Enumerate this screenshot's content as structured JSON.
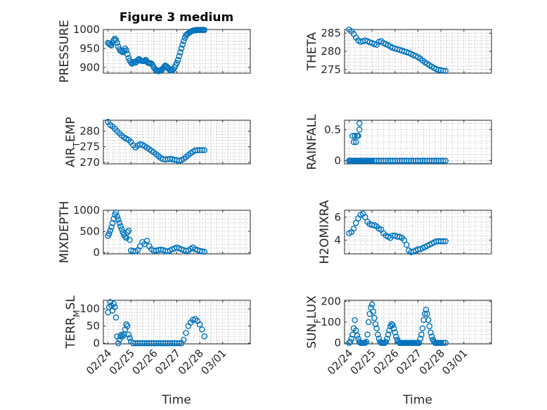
{
  "title": "Figure 3 medium",
  "xlabel": "Time",
  "colors": {
    "marker": "#0072BD",
    "axis": "#262626",
    "grid": "#b3b3b3"
  },
  "chart_data": [
    {
      "type": "scatter",
      "ylabel": "PRESSURE",
      "ylim": [
        885,
        1000
      ],
      "yticks": [
        900,
        950,
        1000
      ],
      "x": [
        0.0,
        0.05,
        0.1,
        0.15,
        0.2,
        0.25,
        0.3,
        0.35,
        0.4,
        0.45,
        0.5,
        0.55,
        0.6,
        0.65,
        0.7,
        0.75,
        0.8,
        0.85,
        0.9,
        0.95,
        1.0,
        1.05,
        1.1,
        1.15,
        1.2,
        1.25,
        1.3,
        1.35,
        1.4,
        1.45,
        1.5,
        1.55,
        1.6,
        1.65,
        1.7,
        1.75,
        1.8,
        1.85,
        1.9,
        1.95,
        2.0,
        2.05,
        2.1,
        2.15,
        2.2,
        2.25,
        2.3,
        2.35,
        2.4,
        2.45,
        2.5,
        2.55,
        2.6,
        2.65,
        2.7,
        2.75,
        2.8,
        2.85,
        2.9,
        2.95,
        3.0,
        3.05,
        3.1,
        3.15,
        3.2,
        3.25,
        3.3,
        3.35,
        3.4,
        3.45,
        3.5,
        3.55,
        3.6,
        3.65,
        3.7,
        3.75,
        3.8,
        3.85,
        3.9,
        3.95,
        4.0,
        4.05,
        4.1,
        4.15,
        4.2
      ],
      "y": [
        965,
        963,
        960,
        958,
        965,
        972,
        976,
        972,
        965,
        955,
        948,
        944,
        942,
        940,
        944,
        950,
        945,
        935,
        925,
        918,
        913,
        910,
        912,
        915,
        913,
        915,
        920,
        922,
        920,
        918,
        917,
        917,
        918,
        920,
        915,
        912,
        912,
        911,
        910,
        906,
        900,
        896,
        893,
        892,
        890,
        892,
        893,
        894,
        898,
        902,
        905,
        903,
        900,
        896,
        893,
        892,
        892,
        895,
        900,
        906,
        912,
        920,
        930,
        940,
        950,
        960,
        970,
        978,
        985,
        988,
        990,
        992,
        994,
        996,
        997,
        998,
        998,
        999,
        999,
        999,
        999,
        999,
        999,
        999,
        999
      ],
      "xlim": [
        -0.2,
        6.2
      ]
    },
    {
      "type": "scatter",
      "ylabel": "THETA",
      "ylim": [
        274,
        286
      ],
      "yticks": [
        275,
        280,
        285
      ],
      "x": [
        0.0,
        0.1,
        0.2,
        0.3,
        0.4,
        0.5,
        0.6,
        0.7,
        0.8,
        0.9,
        1.0,
        1.1,
        1.2,
        1.3,
        1.4,
        1.5,
        1.6,
        1.7,
        1.8,
        1.9,
        2.0,
        2.1,
        2.2,
        2.3,
        2.4,
        2.5,
        2.6,
        2.7,
        2.8,
        2.9,
        3.0,
        3.1,
        3.2,
        3.3,
        3.4,
        3.5,
        3.6,
        3.7,
        3.8,
        3.9,
        4.0,
        4.1,
        4.2
      ],
      "y": [
        286,
        285.5,
        284.8,
        283.8,
        283,
        282.6,
        282.8,
        283,
        282.8,
        282.5,
        282.3,
        282,
        281.8,
        282.6,
        282.8,
        282.3,
        282,
        281.7,
        281.3,
        281,
        280.8,
        280.6,
        280.4,
        280.2,
        280,
        279.8,
        279.6,
        279.3,
        279,
        278.7,
        278.4,
        278,
        277.5,
        277,
        276.6,
        276.2,
        275.8,
        275.4,
        275.1,
        274.9,
        274.8,
        274.7,
        274.6
      ],
      "xlim": [
        -0.2,
        6.2
      ]
    },
    {
      "type": "scatter",
      "ylabel": "AIR_TEMP",
      "ylim": [
        269.5,
        283.5
      ],
      "yticks": [
        270,
        275,
        280
      ],
      "x": [
        0.0,
        0.1,
        0.2,
        0.3,
        0.4,
        0.5,
        0.6,
        0.7,
        0.8,
        0.9,
        1.0,
        1.1,
        1.2,
        1.3,
        1.4,
        1.5,
        1.6,
        1.7,
        1.8,
        1.9,
        2.0,
        2.1,
        2.2,
        2.3,
        2.4,
        2.5,
        2.6,
        2.7,
        2.8,
        2.9,
        3.0,
        3.1,
        3.2,
        3.3,
        3.4,
        3.5,
        3.6,
        3.7,
        3.8,
        3.9,
        4.0,
        4.1,
        4.2
      ],
      "y": [
        283,
        282,
        281.5,
        280.8,
        280,
        279.3,
        278.6,
        278,
        277.6,
        277.2,
        276.5,
        275.5,
        274.8,
        275.4,
        275.8,
        275.6,
        275.2,
        274.7,
        274.2,
        273.7,
        273.2,
        272.6,
        272,
        271.4,
        271,
        270.9,
        271,
        271.1,
        271,
        270.8,
        270.7,
        270.5,
        270.7,
        271.1,
        271.7,
        272.3,
        272.9,
        273.4,
        273.8,
        273.9,
        273.9,
        273.9,
        273.9
      ],
      "xlim": [
        -0.2,
        6.2
      ]
    },
    {
      "type": "scatter",
      "ylabel": "RAINFALL",
      "ylim": [
        -0.05,
        0.65
      ],
      "yticks": [
        0,
        0.5
      ],
      "x": [
        0.0,
        0.05,
        0.1,
        0.15,
        0.2,
        0.25,
        0.3,
        0.35,
        0.4,
        0.45,
        0.5,
        0.55,
        0.6,
        0.65,
        0.7,
        0.75,
        0.8,
        0.85,
        0.9,
        0.95,
        1.0,
        1.1,
        1.2,
        1.3,
        1.4,
        1.5,
        1.6,
        1.7,
        1.8,
        1.9,
        2.0,
        2.1,
        2.2,
        2.3,
        2.4,
        2.5,
        2.6,
        2.7,
        2.8,
        2.9,
        3.0,
        3.1,
        3.2,
        3.3,
        3.4,
        3.5,
        3.6,
        3.7,
        3.8,
        3.9,
        4.0,
        4.1,
        4.2,
        0.15,
        0.2,
        0.25,
        0.3,
        0.35,
        0.4,
        0.45,
        0.45
      ],
      "y": [
        0,
        0,
        0,
        0,
        0,
        0,
        0,
        0,
        0,
        0,
        0,
        0,
        0,
        0,
        0,
        0,
        0,
        0,
        0,
        0,
        0,
        0,
        0,
        0,
        0,
        0,
        0,
        0,
        0,
        0,
        0,
        0,
        0,
        0,
        0,
        0,
        0,
        0,
        0,
        0,
        0,
        0,
        0,
        0,
        0,
        0,
        0,
        0,
        0,
        0,
        0,
        0,
        0,
        0.4,
        0.3,
        0.4,
        0.3,
        0.4,
        0.4,
        0.5,
        0.6
      ],
      "xlim": [
        -0.2,
        6.2
      ]
    },
    {
      "type": "scatter",
      "ylabel": "MIXDEPTH",
      "ylim": [
        -30,
        1000
      ],
      "yticks": [
        0,
        500,
        1000
      ],
      "x": [
        0.0,
        0.05,
        0.1,
        0.15,
        0.2,
        0.25,
        0.3,
        0.35,
        0.4,
        0.45,
        0.5,
        0.55,
        0.6,
        0.65,
        0.7,
        0.75,
        0.8,
        0.85,
        0.9,
        0.95,
        1.0,
        1.1,
        1.2,
        1.3,
        1.4,
        1.5,
        1.6,
        1.7,
        1.8,
        1.9,
        2.0,
        2.1,
        2.2,
        2.3,
        2.4,
        2.5,
        2.6,
        2.7,
        2.8,
        2.9,
        3.0,
        3.1,
        3.2,
        3.3,
        3.4,
        3.5,
        3.6,
        3.7,
        3.8,
        3.9,
        4.0,
        4.1,
        4.2
      ],
      "y": [
        400,
        450,
        520,
        600,
        700,
        800,
        900,
        950,
        850,
        780,
        700,
        620,
        550,
        480,
        420,
        380,
        350,
        480,
        520,
        300,
        50,
        40,
        30,
        60,
        150,
        250,
        200,
        280,
        150,
        80,
        40,
        50,
        60,
        70,
        60,
        40,
        30,
        50,
        80,
        100,
        120,
        100,
        80,
        60,
        40,
        50,
        90,
        120,
        80,
        60,
        40,
        30,
        20
      ],
      "xlim": [
        -0.2,
        6.2
      ]
    },
    {
      "type": "scatter",
      "ylabel": "H2OMIXRA",
      "ylim": [
        2.8,
        6.6
      ],
      "yticks": [
        4,
        6
      ],
      "x": [
        0.0,
        0.1,
        0.2,
        0.3,
        0.4,
        0.5,
        0.6,
        0.7,
        0.8,
        0.9,
        1.0,
        1.1,
        1.2,
        1.3,
        1.4,
        1.5,
        1.6,
        1.7,
        1.8,
        1.9,
        2.0,
        2.1,
        2.2,
        2.3,
        2.4,
        2.5,
        2.6,
        2.7,
        2.8,
        2.9,
        3.0,
        3.1,
        3.2,
        3.3,
        3.4,
        3.5,
        3.6,
        3.7,
        3.8,
        3.9,
        4.0,
        4.1,
        4.2
      ],
      "y": [
        4.6,
        4.7,
        5.0,
        5.5,
        5.9,
        6.2,
        6.3,
        6.0,
        5.6,
        5.4,
        5.3,
        5.3,
        5.2,
        5.0,
        4.9,
        4.6,
        4.4,
        4.3,
        4.2,
        4.4,
        4.4,
        4.3,
        4.3,
        4.2,
        4.0,
        3.6,
        3.1,
        2.95,
        3.0,
        3.1,
        3.2,
        3.2,
        3.3,
        3.4,
        3.5,
        3.6,
        3.7,
        3.8,
        3.9,
        3.9,
        3.9,
        3.9,
        3.9
      ],
      "xlim": [
        -0.2,
        6.2
      ]
    },
    {
      "type": "scatter",
      "ylabel": "TERR_MSL",
      "ylim": [
        -2,
        125
      ],
      "yticks": [
        0,
        50,
        100
      ],
      "x": [
        0.0,
        0.05,
        0.1,
        0.15,
        0.2,
        0.25,
        0.3,
        0.35,
        0.4,
        0.45,
        0.5,
        0.55,
        0.6,
        0.65,
        0.7,
        0.75,
        0.8,
        0.85,
        0.9,
        0.95,
        1.0,
        1.1,
        1.2,
        1.3,
        1.4,
        1.5,
        1.6,
        1.7,
        1.8,
        1.9,
        2.0,
        2.1,
        2.2,
        2.3,
        2.4,
        2.5,
        2.6,
        2.7,
        2.8,
        2.9,
        3.0,
        3.1,
        3.2,
        3.3,
        3.4,
        3.5,
        3.6,
        3.7,
        3.8,
        3.9,
        4.0,
        4.1,
        4.2
      ],
      "y": [
        90,
        105,
        120,
        110,
        95,
        115,
        105,
        75,
        20,
        0,
        10,
        20,
        25,
        20,
        25,
        40,
        55,
        50,
        25,
        15,
        5,
        0,
        0,
        0,
        0,
        0,
        0,
        0,
        0,
        0,
        0,
        0,
        0,
        0,
        0,
        0,
        0,
        0,
        0,
        0,
        0,
        0,
        0,
        10,
        30,
        50,
        60,
        68,
        70,
        65,
        55,
        40,
        20
      ],
      "xlim": [
        -0.2,
        6.2
      ]
    },
    {
      "type": "scatter",
      "ylabel": "SUN_FLUX",
      "ylim": [
        -5,
        205
      ],
      "yticks": [
        0,
        100,
        200
      ],
      "x": [
        0.0,
        0.05,
        0.1,
        0.15,
        0.2,
        0.25,
        0.3,
        0.35,
        0.4,
        0.45,
        0.5,
        0.55,
        0.6,
        0.65,
        0.7,
        0.75,
        0.8,
        0.85,
        0.9,
        0.95,
        1.0,
        1.05,
        1.1,
        1.15,
        1.2,
        1.25,
        1.3,
        1.35,
        1.4,
        1.45,
        1.5,
        1.55,
        1.6,
        1.65,
        1.7,
        1.75,
        1.8,
        1.85,
        1.9,
        1.95,
        2.0,
        2.05,
        2.1,
        2.15,
        2.2,
        2.25,
        2.3,
        2.35,
        2.4,
        2.45,
        2.5,
        2.55,
        2.6,
        2.65,
        2.7,
        2.75,
        2.8,
        2.85,
        2.9,
        2.95,
        3.0,
        3.05,
        3.1,
        3.15,
        3.2,
        3.25,
        3.3,
        3.35,
        3.4,
        3.45,
        3.5,
        3.55,
        3.6,
        3.65,
        3.7,
        3.75,
        3.8,
        3.85,
        3.9,
        3.95,
        4.0,
        4.1,
        4.2
      ],
      "y": [
        0,
        5,
        20,
        40,
        70,
        110,
        60,
        35,
        20,
        5,
        0,
        0,
        0,
        0,
        0,
        5,
        40,
        100,
        140,
        170,
        185,
        150,
        120,
        90,
        70,
        40,
        20,
        5,
        0,
        0,
        0,
        0,
        5,
        20,
        40,
        60,
        80,
        90,
        85,
        70,
        50,
        30,
        15,
        5,
        0,
        0,
        0,
        0,
        0,
        0,
        0,
        0,
        0,
        0,
        0,
        0,
        0,
        0,
        0,
        0,
        0,
        0,
        20,
        40,
        70,
        110,
        140,
        160,
        140,
        110,
        80,
        50,
        30,
        15,
        5,
        0,
        0,
        0,
        0,
        0,
        0,
        0,
        0
      ],
      "xlim": [
        -0.2,
        6.2
      ]
    }
  ],
  "xticks": {
    "values": [
      0,
      1,
      2,
      3,
      4,
      5
    ],
    "labels": [
      "02/24",
      "02/25",
      "02/26",
      "02/27",
      "02/28",
      "03/01"
    ]
  }
}
